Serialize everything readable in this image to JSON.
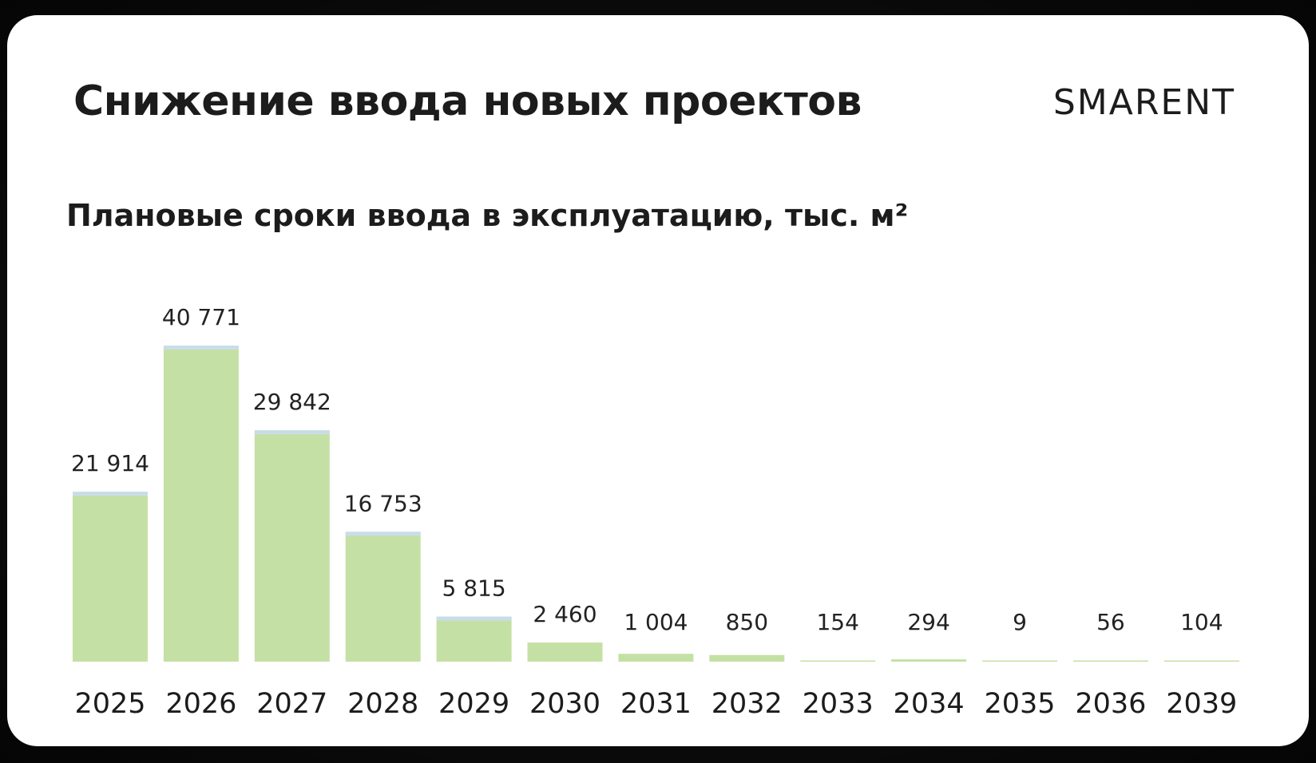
{
  "header": {
    "title": "Снижение ввода новых проектов",
    "brand": "SMARENT"
  },
  "colors": {
    "bar": "#c5e0a4",
    "bar_cap": "#c9dde9",
    "background": "#ffffff",
    "text": "#1c1c1c"
  },
  "chart_data": {
    "type": "bar",
    "title": "Плановые сроки ввода в эксплуатацию, тыс. м²",
    "xlabel": "",
    "ylabel": "",
    "categories": [
      "2025",
      "2026",
      "2027",
      "2028",
      "2029",
      "2030",
      "2031",
      "2032",
      "2033",
      "2034",
      "2035",
      "2036",
      "2039"
    ],
    "values": [
      21914,
      40771,
      29842,
      16753,
      5815,
      2460,
      1004,
      850,
      154,
      294,
      9,
      56,
      104
    ],
    "value_labels": [
      "21 914",
      "40 771",
      "29 842",
      "16 753",
      "5 815",
      "2 460",
      "1 004",
      "850",
      "154",
      "294",
      "9",
      "56",
      "104"
    ],
    "ylim": [
      0,
      40771
    ],
    "grid": false,
    "legend": "none"
  }
}
